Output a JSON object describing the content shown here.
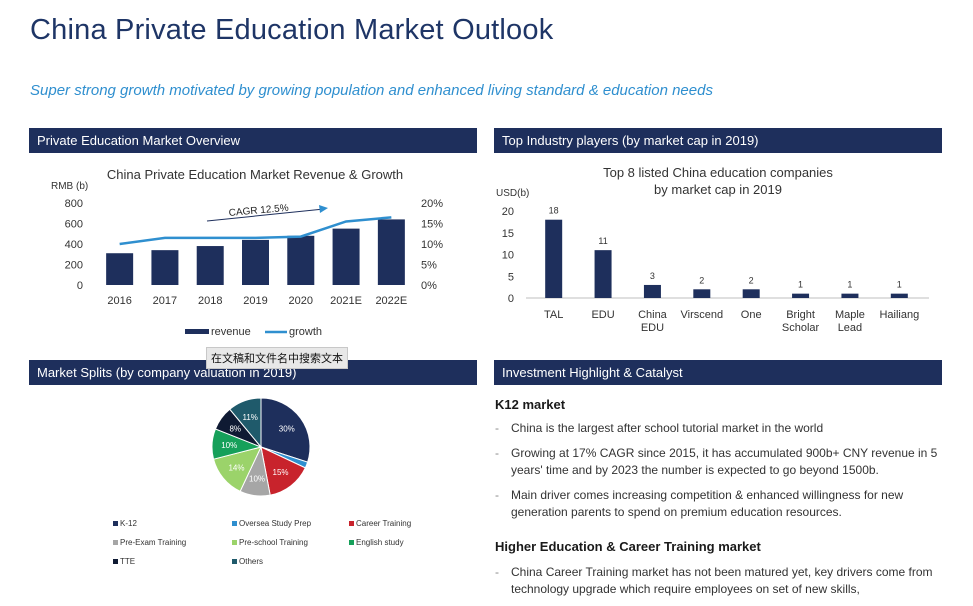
{
  "page": {
    "title": "China Private Education Market Outlook",
    "subtitle": "Super strong growth motivated by growing population and enhanced living standard & education needs"
  },
  "panels": {
    "overview": "Private Education Market Overview",
    "players": "Top Industry players (by market cap in 2019)",
    "splits": "Market Splits (by company valuation in 2019)",
    "highlight": "Investment Highlight & Catalyst"
  },
  "tooltip": "在文稿和文件名中搜索文本",
  "highlight": {
    "section1_title": "K12 market",
    "section1_items": [
      "Chinа is the largest after school tutorial market in the world",
      "Growing at 17% CAGR since 2015, it has accumulated 900b+ CNY revenue in 5 years' time and by 2023 the number is expected to go beyond 1500b.",
      "Main driver comes increasing competition & enhanced willingness for new generation parents to spend on premium education resources."
    ],
    "section2_title": "Higher Education & Career Training market",
    "section2_items": [
      "China Career Training market has not been matured yet, key drivers come from technology upgrade which require employees on set of new skills,"
    ]
  },
  "chart_data": [
    {
      "type": "bar",
      "title": "China Private Education Market Revenue & Growth",
      "ylabel": "RMB (b)",
      "categories": [
        "2016",
        "2017",
        "2018",
        "2019",
        "2020",
        "2021E",
        "2022E"
      ],
      "series": [
        {
          "name": "revenue",
          "type": "bar",
          "values": [
            310,
            340,
            380,
            440,
            480,
            550,
            640
          ],
          "axis": "left"
        },
        {
          "name": "growth",
          "type": "line",
          "values": [
            10,
            11.5,
            11.5,
            11.5,
            11.8,
            15.5,
            16.5
          ],
          "axis": "right"
        }
      ],
      "ylim": [
        0,
        800
      ],
      "yticks": [
        "0",
        "200",
        "400",
        "600",
        "800"
      ],
      "y2lim": [
        0,
        20
      ],
      "y2ticks": [
        "0%",
        "5%",
        "10%",
        "15%",
        "20%"
      ],
      "annotation": "CAGR 12.5%",
      "legend": "bottom",
      "colors": {
        "bar": "#1e2f5c",
        "line": "#2f8fcf"
      }
    },
    {
      "type": "bar",
      "title": "Top 8 listed China education companies by market cap in 2019",
      "title_lines": [
        "Top 8 listed China education companies",
        "by market cap in 2019"
      ],
      "ylabel": "USD(b)",
      "categories": [
        "TAL",
        "EDU",
        "China EDU",
        "Virscend",
        "One",
        "Bright Scholar",
        "Maple Lead",
        "Hailiang"
      ],
      "category_lines": [
        [
          "TAL"
        ],
        [
          "EDU"
        ],
        [
          "China",
          "EDU"
        ],
        [
          "Virscend"
        ],
        [
          "One"
        ],
        [
          "Bright",
          "Scholar"
        ],
        [
          "Maple",
          "Lead"
        ],
        [
          "Hailiang"
        ]
      ],
      "values": [
        18,
        11,
        3,
        2,
        2,
        1,
        1,
        1
      ],
      "ylim": [
        0,
        20
      ],
      "yticks": [
        "0",
        "5",
        "10",
        "15",
        "20"
      ],
      "colors": {
        "bar": "#1e2f5c"
      }
    },
    {
      "type": "pie",
      "title": "",
      "slices": [
        {
          "name": "K-12",
          "value": 30,
          "color": "#1e2f5c",
          "label": "30%"
        },
        {
          "name": "Oversea Study Prep",
          "value": 2,
          "color": "#2f8fcf",
          "label": ""
        },
        {
          "name": "Career Training",
          "value": 15,
          "color": "#c8232c",
          "label": "15%"
        },
        {
          "name": "Pre-Exam Training",
          "value": 10,
          "color": "#a6a6a6",
          "label": "10%"
        },
        {
          "name": "Pre-school Training",
          "value": 14,
          "color": "#9bd36a",
          "label": "14%"
        },
        {
          "name": "English study",
          "value": 10,
          "color": "#16a05a",
          "label": "10%"
        },
        {
          "name": "TTE",
          "value": 8,
          "color": "#0f1a33",
          "label": "8%"
        },
        {
          "name": "Others",
          "value": 11,
          "color": "#1f5a6b",
          "label": "11%"
        }
      ],
      "legend": "bottom"
    }
  ]
}
